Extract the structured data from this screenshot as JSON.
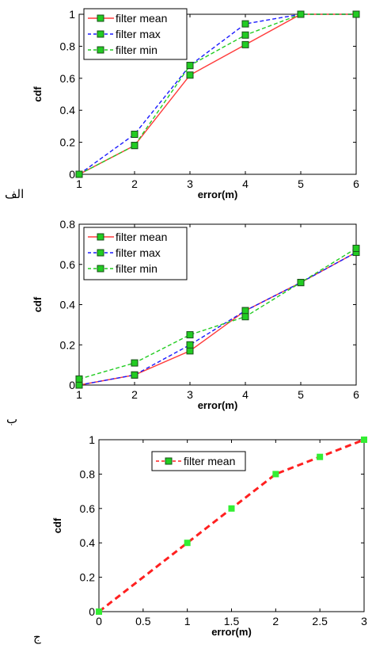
{
  "charts": [
    {
      "panel_label": "الف",
      "chart_data": {
        "type": "line",
        "xlabel": "error(m)",
        "ylabel": "cdf",
        "xlim": [
          1,
          6
        ],
        "ylim": [
          0,
          1
        ],
        "xticks": [
          "1",
          "2",
          "3",
          "4",
          "5",
          "6"
        ],
        "yticks": [
          "0",
          "0.2",
          "0.4",
          "0.6",
          "0.8",
          "1"
        ],
        "x": [
          1,
          2,
          3,
          4,
          5,
          6
        ],
        "legend_position": "top-left",
        "series": [
          {
            "name": "filter mean",
            "values": [
              0,
              0.18,
              0.62,
              0.81,
              1,
              1
            ],
            "color": "#ff3b3b",
            "dash": "solid"
          },
          {
            "name": "filter max",
            "values": [
              0,
              0.25,
              0.68,
              0.94,
              1,
              1
            ],
            "color": "#1a1aff",
            "dash": "dashed"
          },
          {
            "name": "filter min",
            "values": [
              0,
              0.18,
              0.68,
              0.87,
              1,
              1
            ],
            "color": "#22cc22",
            "dash": "dashed"
          }
        ]
      }
    },
    {
      "panel_label": "ب",
      "chart_data": {
        "type": "line",
        "xlabel": "error(m)",
        "ylabel": "cdf",
        "xlim": [
          1,
          6
        ],
        "ylim": [
          0,
          0.8
        ],
        "xticks": [
          "1",
          "2",
          "3",
          "4",
          "5",
          "6"
        ],
        "yticks": [
          "0",
          "0.2",
          "0.4",
          "0.6",
          "0.8"
        ],
        "x": [
          1,
          2,
          3,
          4,
          5,
          6
        ],
        "legend_position": "top-left",
        "series": [
          {
            "name": "filter mean",
            "values": [
              0,
              0.05,
              0.17,
              0.37,
              0.51,
              0.66
            ],
            "color": "#ff3b3b",
            "dash": "solid"
          },
          {
            "name": "filter max",
            "values": [
              0,
              0.05,
              0.2,
              0.37,
              0.51,
              0.66
            ],
            "color": "#1a1aff",
            "dash": "dashed"
          },
          {
            "name": "filter min",
            "values": [
              0.03,
              0.11,
              0.25,
              0.34,
              0.51,
              0.68
            ],
            "color": "#22cc22",
            "dash": "dashed"
          }
        ]
      }
    },
    {
      "panel_label": "ج",
      "chart_data": {
        "type": "line",
        "xlabel": "error(m)",
        "ylabel": "cdf",
        "xlim": [
          0,
          3
        ],
        "ylim": [
          0,
          1
        ],
        "xticks": [
          "0",
          "0.5",
          "1",
          "1.5",
          "2",
          "2.5",
          "3"
        ],
        "yticks": [
          "0",
          "0.2",
          "0.4",
          "0.6",
          "0.8",
          "1"
        ],
        "x": [
          0,
          1,
          1.5,
          2,
          2.5,
          3
        ],
        "legend_position": "top-center",
        "series": [
          {
            "name": "filter mean",
            "values": [
              0,
              0.4,
              0.6,
              0.8,
              0.9,
              1
            ],
            "color": "#ff2020",
            "dash": "dashed",
            "marker_color": "#33ee33"
          }
        ]
      }
    }
  ]
}
